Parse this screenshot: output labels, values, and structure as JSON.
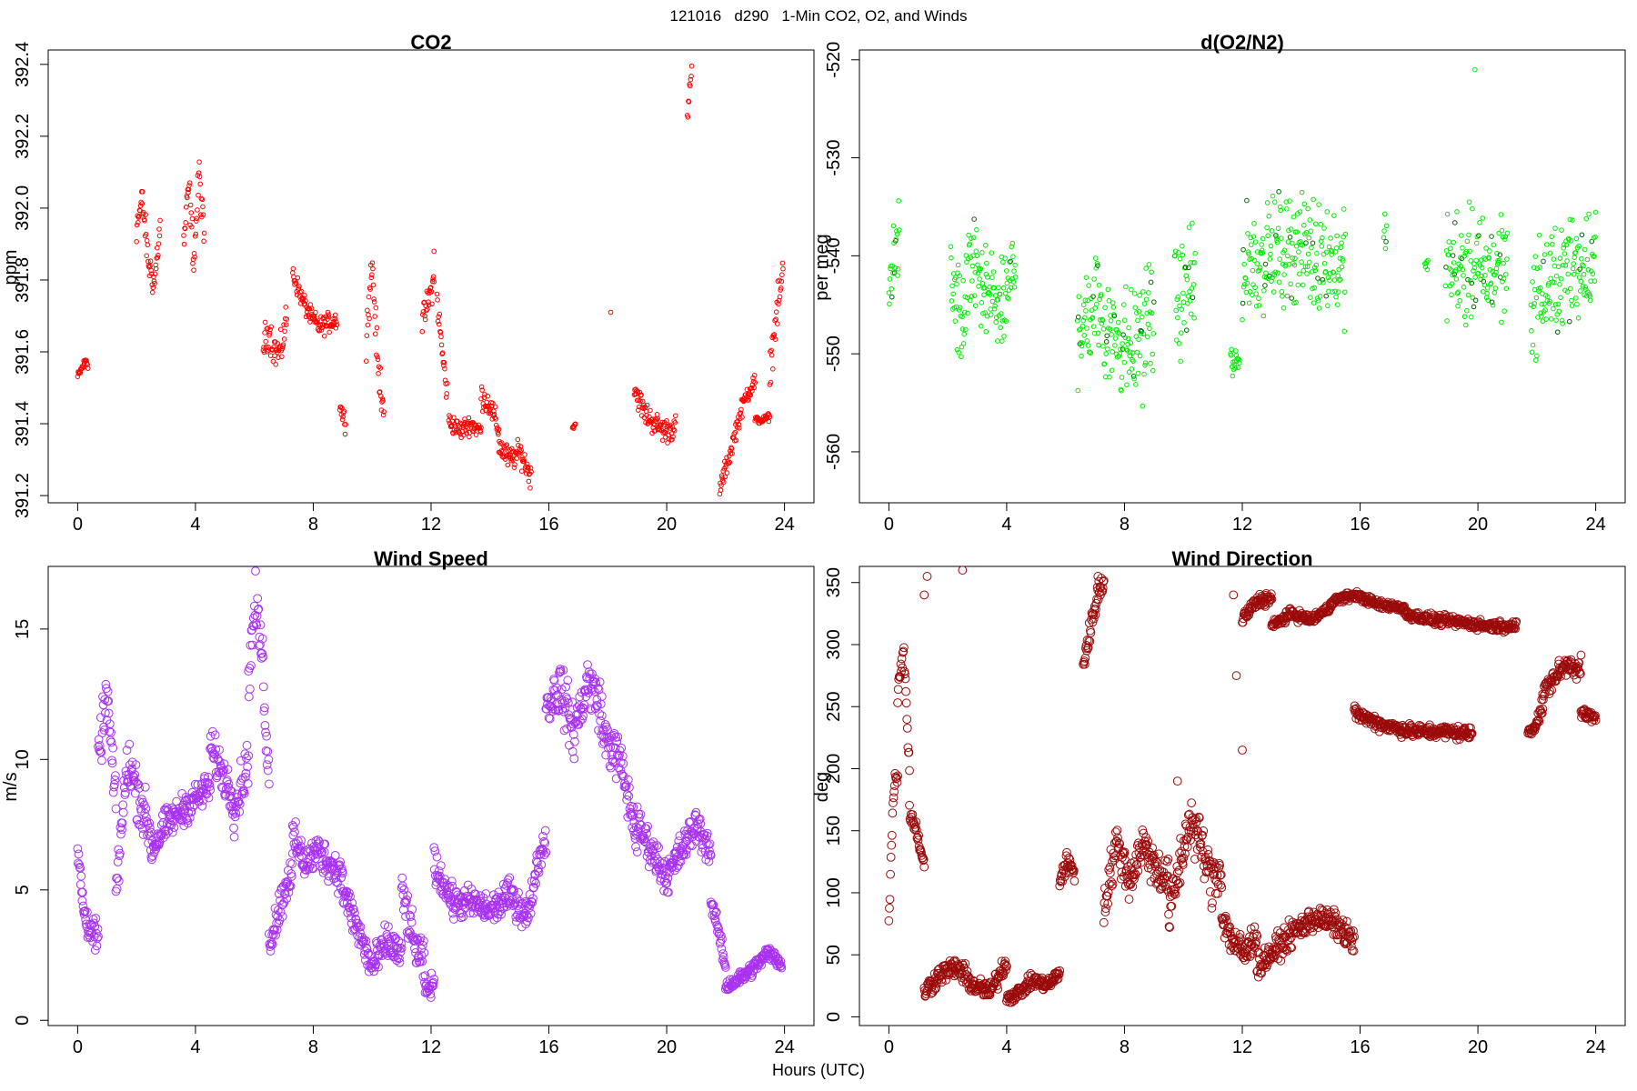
{
  "figure": {
    "title": "121016   d290   1-Min CO2, O2, and Winds",
    "xlabel": "Hours (UTC)"
  },
  "chart_data": [
    {
      "id": "co2",
      "type": "scatter",
      "title": "CO2",
      "xlabel": "Hours (UTC)",
      "ylabel": "ppm",
      "xlim": [
        -1,
        25
      ],
      "ylim": [
        391.18,
        392.44
      ],
      "xticks": [
        0,
        4,
        8,
        12,
        16,
        20,
        24
      ],
      "yticks": [
        391.2,
        391.4,
        391.6,
        391.8,
        392.0,
        392.2,
        392.4
      ],
      "ytick_labels": [
        "391.2",
        "391.4",
        "391.6",
        "391.8",
        "392.0",
        "392.2",
        "392.4"
      ],
      "color": "#ff0000",
      "segments": [
        {
          "x0": 0.0,
          "x1": 0.35,
          "ys": [
            391.53,
            391.54,
            391.55,
            391.56,
            391.57,
            391.58,
            391.56
          ],
          "amp": 0.02
        },
        {
          "x0": 2.0,
          "x1": 2.8,
          "ys": [
            391.95,
            392.02,
            391.85,
            391.79,
            391.95
          ],
          "amp": 0.07
        },
        {
          "x0": 3.6,
          "x1": 4.3,
          "ys": [
            391.9,
            392.06,
            391.85,
            392.1,
            391.9
          ],
          "amp": 0.08
        },
        {
          "x0": 6.3,
          "x1": 7.1,
          "ys": [
            391.62,
            391.66,
            391.6,
            391.6,
            391.7
          ],
          "amp": 0.07
        },
        {
          "x0": 7.3,
          "x1": 8.8,
          "ys": [
            391.82,
            391.75,
            391.7,
            391.67,
            391.68,
            391.69
          ],
          "amp": 0.04
        },
        {
          "x0": 8.9,
          "x1": 9.1,
          "ys": [
            391.45,
            391.4
          ],
          "amp": 0.04
        },
        {
          "x0": 9.8,
          "x1": 10.4,
          "ys": [
            391.65,
            391.85,
            391.55,
            391.45
          ],
          "amp": 0.08
        },
        {
          "x0": 11.7,
          "x1": 12.1,
          "ys": [
            391.68,
            391.8
          ],
          "amp": 0.06
        },
        {
          "x0": 12.2,
          "x1": 12.55,
          "ys": [
            391.75,
            391.6,
            391.48
          ],
          "amp": 0.06
        },
        {
          "x0": 12.6,
          "x1": 13.7,
          "ys": [
            391.41,
            391.38,
            391.4,
            391.38
          ],
          "amp": 0.04
        },
        {
          "x0": 13.7,
          "x1": 14.3,
          "ys": [
            391.48,
            391.45,
            391.38
          ],
          "amp": 0.05
        },
        {
          "x0": 14.3,
          "x1": 15.4,
          "ys": [
            391.34,
            391.3,
            391.32,
            391.25
          ],
          "amp": 0.05
        },
        {
          "x0": 16.8,
          "x1": 16.9,
          "ys": [
            391.39,
            391.4
          ],
          "amp": 0.01
        },
        {
          "x0": 18.9,
          "x1": 20.3,
          "ys": [
            391.5,
            391.43,
            391.4,
            391.38,
            391.39
          ],
          "amp": 0.05
        },
        {
          "x0": 20.7,
          "x1": 20.85,
          "ys": [
            392.25,
            392.32,
            392.38
          ],
          "amp": 0.04
        },
        {
          "x0": 21.8,
          "x1": 23.0,
          "ys": [
            391.22,
            391.3,
            391.4,
            391.48,
            391.52
          ],
          "amp": 0.04
        },
        {
          "x0": 23.0,
          "x1": 23.5,
          "ys": [
            391.41,
            391.41,
            391.42
          ],
          "amp": 0.015
        },
        {
          "x0": 23.5,
          "x1": 23.95,
          "ys": [
            391.55,
            391.7,
            391.82
          ],
          "amp": 0.08
        }
      ],
      "points": [
        [
          18.1,
          391.71
        ],
        [
          12.1,
          391.88
        ]
      ]
    },
    {
      "id": "o2",
      "type": "scatter",
      "title": "d(O2/N2)",
      "xlabel": "Hours (UTC)",
      "ylabel": "per meg",
      "xlim": [
        -1,
        25
      ],
      "ylim": [
        -565.2,
        -519.0
      ],
      "xticks": [
        0,
        4,
        8,
        12,
        16,
        20,
        24
      ],
      "yticks": [
        -560,
        -550,
        -540,
        -530,
        -520
      ],
      "ytick_labels": [
        "-560",
        "-550",
        "-540",
        "-530",
        "-520"
      ],
      "color": "#00ee00",
      "highlight_color": "#006400",
      "segments": [
        {
          "x0": 0.0,
          "x1": 0.35,
          "ys": [
            -543,
            -540,
            -538
          ],
          "amp": 6
        },
        {
          "x0": 2.1,
          "x1": 3.3,
          "ys": [
            -543,
            -547,
            -540,
            -546
          ],
          "amp": 8
        },
        {
          "x0": 3.3,
          "x1": 4.3,
          "ys": [
            -543,
            -546,
            -541
          ],
          "amp": 7
        },
        {
          "x0": 6.4,
          "x1": 9.0,
          "ys": [
            -547,
            -545,
            -548,
            -549,
            -546
          ],
          "amp": 9
        },
        {
          "x0": 9.7,
          "x1": 10.4,
          "ys": [
            -545,
            -543
          ],
          "amp": 8
        },
        {
          "x0": 11.6,
          "x1": 11.9,
          "ys": [
            -551
          ],
          "amp": 3
        },
        {
          "x0": 12.0,
          "x1": 15.5,
          "ys": [
            -541,
            -540,
            -539,
            -540,
            -541
          ],
          "amp": 8
        },
        {
          "x0": 16.8,
          "x1": 16.9,
          "ys": [
            -538
          ],
          "amp": 4
        },
        {
          "x0": 18.2,
          "x1": 18.3,
          "ys": [
            -541
          ],
          "amp": 1
        },
        {
          "x0": 18.9,
          "x1": 21.0,
          "ys": [
            -541,
            -541,
            -542,
            -540
          ],
          "amp": 8
        },
        {
          "x0": 21.8,
          "x1": 24.0,
          "ys": [
            -545,
            -543,
            -541,
            -540
          ],
          "amp": 8
        }
      ],
      "points": [
        [
          19.9,
          -521
        ]
      ]
    },
    {
      "id": "wind-speed",
      "type": "scatter",
      "title": "Wind Speed",
      "xlabel": "Hours (UTC)",
      "ylabel": "m/s",
      "xlim": [
        -1,
        25
      ],
      "ylim": [
        -0.2,
        17.4
      ],
      "xticks": [
        0,
        4,
        8,
        12,
        16,
        20,
        24
      ],
      "yticks": [
        0,
        5,
        10,
        15
      ],
      "ytick_labels": [
        "0",
        "5",
        "10",
        "15"
      ],
      "color": "#a832f0",
      "segments": [
        {
          "x0": 0.0,
          "x1": 0.7,
          "ys": [
            6.5,
            4,
            3.5,
            3
          ],
          "amp": 0.9
        },
        {
          "x0": 0.7,
          "x1": 1.3,
          "ys": [
            10,
            12.5,
            8
          ],
          "amp": 1.4
        },
        {
          "x0": 1.3,
          "x1": 2.5,
          "ys": [
            5,
            10,
            8.5,
            7
          ],
          "amp": 1.5
        },
        {
          "x0": 2.5,
          "x1": 4.5,
          "ys": [
            6.5,
            7.5,
            8,
            8.5,
            9
          ],
          "amp": 0.9
        },
        {
          "x0": 4.5,
          "x1": 5.3,
          "ys": [
            10.5,
            9.5,
            8.5
          ],
          "amp": 1.1
        },
        {
          "x0": 5.3,
          "x1": 5.8,
          "ys": [
            8,
            10
          ],
          "amp": 1.3
        },
        {
          "x0": 5.8,
          "x1": 6.5,
          "ys": [
            13,
            16,
            14,
            9
          ],
          "amp": 1.5
        },
        {
          "x0": 6.5,
          "x1": 7.3,
          "ys": [
            3,
            4.5,
            6
          ],
          "amp": 1.1
        },
        {
          "x0": 7.3,
          "x1": 9.0,
          "ys": [
            7,
            6,
            6.5,
            6,
            5.5
          ],
          "amp": 1.0
        },
        {
          "x0": 9.0,
          "x1": 11.0,
          "ys": [
            5,
            3.5,
            2,
            3,
            2.5
          ],
          "amp": 1.0
        },
        {
          "x0": 11.0,
          "x1": 11.8,
          "ys": [
            5,
            3,
            2
          ],
          "amp": 1.2
        },
        {
          "x0": 11.8,
          "x1": 12.1,
          "ys": [
            1.0,
            1.5
          ],
          "amp": 0.6
        },
        {
          "x0": 12.1,
          "x1": 15.3,
          "ys": [
            6,
            4.5,
            4.5,
            4.2,
            4.8,
            4.0
          ],
          "amp": 0.9
        },
        {
          "x0": 15.3,
          "x1": 15.9,
          "ys": [
            4,
            6,
            7
          ],
          "amp": 0.8
        },
        {
          "x0": 15.9,
          "x1": 17.8,
          "ys": [
            12,
            12.8,
            11,
            13,
            12
          ],
          "amp": 1.5
        },
        {
          "x0": 17.8,
          "x1": 19.0,
          "ys": [
            11,
            10,
            7
          ],
          "amp": 1.3
        },
        {
          "x0": 19.0,
          "x1": 21.5,
          "ys": [
            7.5,
            6.5,
            5.5,
            6.5,
            7.5,
            6.5
          ],
          "amp": 1.0
        },
        {
          "x0": 21.5,
          "x1": 22.0,
          "ys": [
            4.5,
            3.5,
            2
          ],
          "amp": 0.5
        },
        {
          "x0": 22.0,
          "x1": 23.9,
          "ys": [
            1.3,
            1.6,
            2.0,
            2.6,
            2.2
          ],
          "amp": 0.4
        }
      ],
      "points": []
    },
    {
      "id": "wind-direction",
      "type": "scatter",
      "title": "Wind Direction",
      "xlabel": "Hours (UTC)",
      "ylabel": "deg",
      "xlim": [
        -1,
        25
      ],
      "ylim": [
        -7,
        363
      ],
      "xticks": [
        0,
        4,
        8,
        12,
        16,
        20,
        24
      ],
      "yticks": [
        0,
        50,
        100,
        150,
        200,
        250,
        300,
        350
      ],
      "ytick_labels": [
        "0",
        "50",
        "100",
        "150",
        "200",
        "250",
        "300",
        "350"
      ],
      "color": "#9b0a0a",
      "segments": [
        {
          "x0": 0.0,
          "x1": 0.3,
          "ys": [
            75,
            180,
            200
          ],
          "amp": 15
        },
        {
          "x0": 0.3,
          "x1": 0.7,
          "ys": [
            260,
            300,
            200
          ],
          "amp": 15
        },
        {
          "x0": 0.7,
          "x1": 1.2,
          "ys": [
            165,
            150,
            120
          ],
          "amp": 10
        },
        {
          "x0": 1.2,
          "x1": 4.0,
          "ys": [
            20,
            35,
            40,
            25,
            20,
            45
          ],
          "amp": 12
        },
        {
          "x0": 4.0,
          "x1": 5.8,
          "ys": [
            15,
            20,
            30,
            25,
            35
          ],
          "amp": 8
        },
        {
          "x0": 5.8,
          "x1": 6.3,
          "ys": [
            110,
            125,
            115
          ],
          "amp": 12
        },
        {
          "x0": 6.6,
          "x1": 7.3,
          "ys": [
            285,
            310,
            340,
            350
          ],
          "amp": 15
        },
        {
          "x0": 7.3,
          "x1": 9.5,
          "ys": [
            90,
            140,
            110,
            140,
            120,
            110
          ],
          "amp": 25
        },
        {
          "x0": 9.5,
          "x1": 11.3,
          "ys": [
            80,
            120,
            160,
            140,
            110,
            120
          ],
          "amp": 30
        },
        {
          "x0": 11.3,
          "x1": 12.5,
          "ys": [
            80,
            60,
            50,
            70
          ],
          "amp": 20
        },
        {
          "x0": 12.5,
          "x1": 15.8,
          "ys": [
            40,
            55,
            70,
            80,
            75,
            60
          ],
          "amp": 15
        },
        {
          "x0": 12.0,
          "x1": 13.0,
          "ys": [
            320,
            335,
            338
          ],
          "amp": 8
        },
        {
          "x0": 13.0,
          "x1": 15.0,
          "ys": [
            315,
            325,
            320,
            330
          ],
          "amp": 6
        },
        {
          "x0": 15.0,
          "x1": 17.5,
          "ys": [
            335,
            340,
            332,
            330
          ],
          "amp": 5
        },
        {
          "x0": 17.5,
          "x1": 21.3,
          "ys": [
            325,
            320,
            318,
            315,
            315
          ],
          "amp": 6
        },
        {
          "x0": 15.8,
          "x1": 19.8,
          "ys": [
            245,
            235,
            230,
            230,
            228
          ],
          "amp": 8
        },
        {
          "x0": 21.7,
          "x1": 22.2,
          "ys": [
            230,
            235,
            250
          ],
          "amp": 8
        },
        {
          "x0": 22.2,
          "x1": 23.5,
          "ys": [
            260,
            275,
            285,
            280
          ],
          "amp": 12
        },
        {
          "x0": 23.5,
          "x1": 24.0,
          "ys": [
            245,
            240
          ],
          "amp": 8
        }
      ],
      "points": [
        [
          1.2,
          340
        ],
        [
          1.3,
          355
        ],
        [
          2.5,
          360
        ],
        [
          7.1,
          355
        ],
        [
          11.7,
          340
        ],
        [
          11.8,
          275
        ],
        [
          12.0,
          215
        ],
        [
          9.8,
          190
        ]
      ]
    }
  ]
}
